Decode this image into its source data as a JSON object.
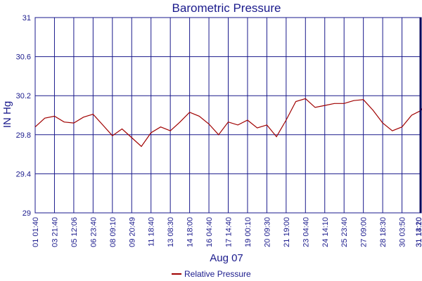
{
  "chart_data": {
    "type": "line",
    "title": "Barometric Pressure",
    "ylabel": "IN Hg",
    "xlabel": "Aug 07",
    "ylim": [
      29,
      31
    ],
    "yticks": [
      "29",
      "29.4",
      "29.8",
      "30.2",
      "30.6",
      "31"
    ],
    "ytick_values": [
      29,
      29.4,
      29.8,
      30.2,
      30.6,
      31
    ],
    "grid": true,
    "legend_position": "bottom",
    "x_tick_labels": [
      "01 01:40",
      "03 21:40",
      "05 12:06",
      "06 23:40",
      "08 09:10",
      "09 20:49",
      "11 18:40",
      "13 08:30",
      "14 18:00",
      "16 04:40",
      "17 14:40",
      "19 00:10",
      "20 09:30",
      "21 19:00",
      "23 04:40",
      "24 14:10",
      "25 23:40",
      "27 09:00",
      "28 18:30",
      "30 03:50",
      "31 13:20",
      "31 14:10"
    ],
    "x": [
      0,
      0.5,
      1,
      1.5,
      2,
      2.5,
      3,
      3.5,
      4,
      4.5,
      5,
      5.5,
      6,
      6.5,
      7,
      7.5,
      8,
      8.5,
      9,
      9.5,
      10,
      10.5,
      11,
      11.5,
      12,
      12.5,
      13,
      13.5,
      14,
      14.5,
      15,
      15.5,
      16,
      16.5,
      17,
      17.5,
      18,
      18.5,
      19,
      19.5,
      20,
      20.3
    ],
    "series": [
      {
        "name": "Relative Pressure",
        "color": "#a00000",
        "values": [
          29.88,
          29.97,
          29.99,
          29.93,
          29.92,
          29.98,
          30.01,
          29.9,
          29.79,
          29.86,
          29.77,
          29.68,
          29.82,
          29.88,
          29.84,
          29.93,
          30.03,
          29.99,
          29.91,
          29.8,
          29.93,
          29.9,
          29.95,
          29.87,
          29.9,
          29.78,
          29.95,
          30.14,
          30.17,
          30.08,
          30.1,
          30.12,
          30.12,
          30.15,
          30.16,
          30.05,
          29.92,
          29.84,
          29.88,
          30.0,
          30.05,
          30.16
        ]
      }
    ]
  }
}
